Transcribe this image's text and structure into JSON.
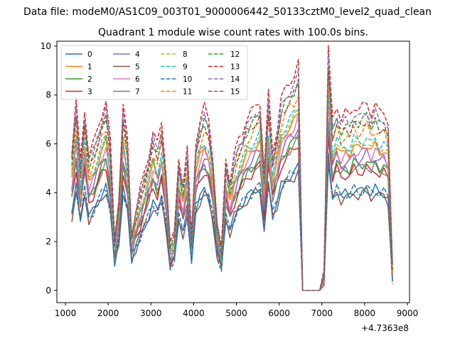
{
  "figure": {
    "suptitle": "Data file: modeM0/AS1C09_003T01_9000006442_50133cztM0_level2_quad_clean"
  },
  "chart_data": {
    "type": "line",
    "title": "Quadrant 1 module wise count rates with 100.0s bins.",
    "xlabel": "",
    "ylabel": "",
    "x_offset_label": "+4.7363e8",
    "xlim": [
      800,
      9050
    ],
    "ylim": [
      -0.5,
      10.2
    ],
    "xticks": [
      1000,
      2000,
      3000,
      4000,
      5000,
      6000,
      7000,
      8000,
      9000
    ],
    "yticks": [
      0,
      2,
      4,
      6,
      8,
      10
    ],
    "grid": false,
    "legend": {
      "placement": "top-left",
      "columns": 4
    },
    "base_x": [
      1150,
      1250,
      1350,
      1450,
      1550,
      1650,
      1750,
      1850,
      1950,
      2050,
      2150,
      2250,
      2350,
      2450,
      2550,
      2650,
      2750,
      2850,
      2950,
      3050,
      3150,
      3250,
      3350,
      3450,
      3550,
      3650,
      3750,
      3850,
      3950,
      4050,
      4150,
      4250,
      4350,
      4450,
      4550,
      4650,
      4750,
      4850,
      4950,
      5050,
      5150,
      5250,
      5350,
      5450,
      5550,
      5650,
      5750,
      5850,
      5950,
      6050,
      6150,
      6250,
      6350,
      6450,
      6550,
      6650,
      6750,
      6850,
      6950,
      7050,
      7150,
      7250,
      7350,
      7450,
      7550,
      7650,
      7750,
      7850,
      7950,
      8050,
      8150,
      8250,
      8350,
      8450,
      8550,
      8650
    ],
    "base_profile": [
      5.2,
      7.0,
      4.8,
      6.8,
      5.0,
      5.4,
      6.0,
      6.6,
      7.0,
      5.5,
      2.0,
      3.5,
      6.8,
      5.6,
      2.2,
      3.0,
      3.7,
      4.4,
      5.1,
      5.9,
      5.4,
      6.3,
      4.6,
      1.7,
      2.1,
      5.0,
      4.0,
      5.2,
      2.0,
      5.6,
      6.3,
      6.8,
      6.4,
      5.0,
      2.4,
      1.5,
      5.0,
      4.1,
      5.0,
      5.6,
      6.0,
      6.4,
      6.6,
      6.9,
      7.1,
      4.4,
      7.3,
      5.2,
      6.0,
      7.1,
      7.5,
      7.8,
      8.0,
      8.4,
      0.0,
      0.0,
      0.0,
      0.0,
      0.0,
      0.7,
      9.0,
      6.3,
      6.9,
      6.4,
      6.6,
      6.5,
      6.9,
      6.7,
      6.8,
      7.0,
      6.6,
      6.9,
      6.6,
      6.7,
      6.3,
      0.8
    ],
    "series": [
      {
        "name": "0",
        "color": "#1f77b4",
        "dash": "solid",
        "scale": 0.6
      },
      {
        "name": "1",
        "color": "#ff7f0e",
        "dash": "solid",
        "scale": 0.86
      },
      {
        "name": "2",
        "color": "#2ca02c",
        "dash": "solid",
        "scale": 0.76
      },
      {
        "name": "3",
        "color": "#d62728",
        "dash": "solid",
        "scale": 0.72
      },
      {
        "name": "4",
        "color": "#9467bd",
        "dash": "solid",
        "scale": 0.8
      },
      {
        "name": "5",
        "color": "#8c564b",
        "dash": "solid",
        "scale": 0.58
      },
      {
        "name": "6",
        "color": "#e377c2",
        "dash": "solid",
        "scale": 0.83
      },
      {
        "name": "7",
        "color": "#7f7f7f",
        "dash": "solid",
        "scale": 0.74
      },
      {
        "name": "8",
        "color": "#bcbd22",
        "dash": "dashed",
        "scale": 0.88
      },
      {
        "name": "9",
        "color": "#17becf",
        "dash": "dashed",
        "scale": 0.9
      },
      {
        "name": "10",
        "color": "#1f77b4",
        "dash": "dashed",
        "scale": 0.6
      },
      {
        "name": "11",
        "color": "#ff7f0e",
        "dash": "dashed",
        "scale": 0.96
      },
      {
        "name": "12",
        "color": "#2ca02c",
        "dash": "dashed",
        "scale": 1.02
      },
      {
        "name": "13",
        "color": "#d62728",
        "dash": "dashed",
        "scale": 1.1
      },
      {
        "name": "14",
        "color": "#9467bd",
        "dash": "dashed",
        "scale": 1.05
      },
      {
        "name": "15",
        "color": "#8c564b",
        "dash": "dashed",
        "scale": 1.0
      }
    ]
  }
}
